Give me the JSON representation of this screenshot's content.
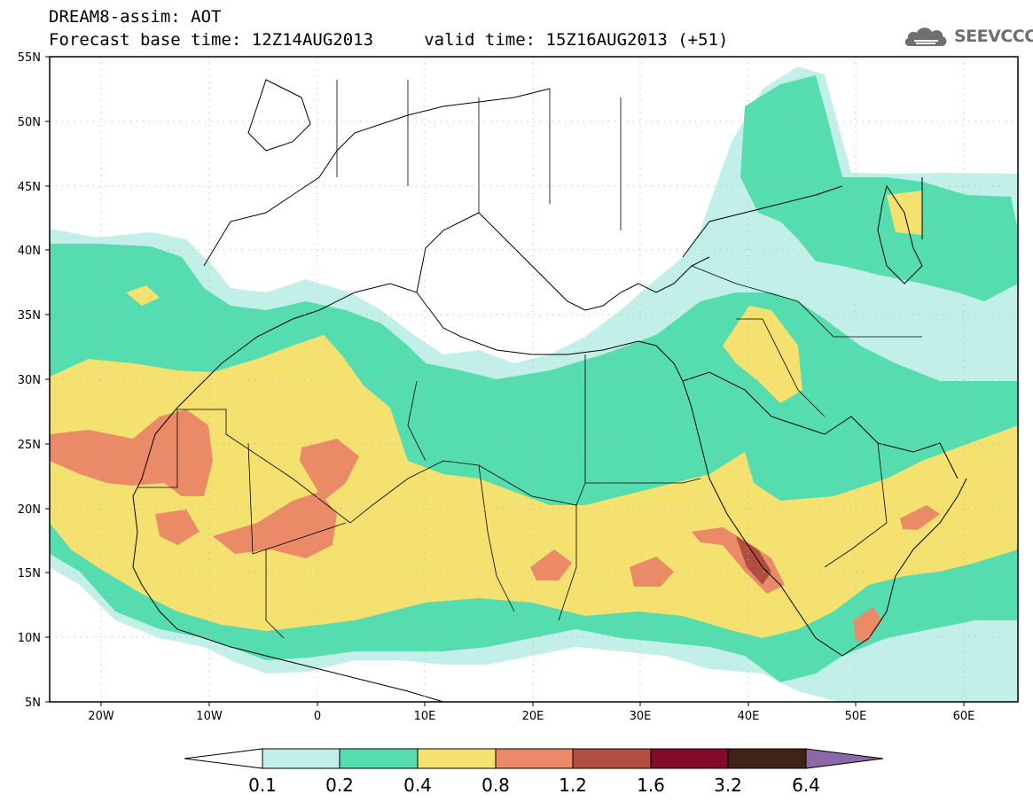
{
  "title": {
    "line1": "DREAM8-assim: AOT",
    "line2": "Forecast base time: 12Z14AUG2013     valid time: 15Z16AUG2013 (+51)"
  },
  "logo": {
    "text": "SEEVCCC",
    "icon": "cloud-icon",
    "color": "#6f6f6f"
  },
  "map": {
    "lat_ticks": [
      "5N",
      "10N",
      "15N",
      "20N",
      "25N",
      "30N",
      "35N",
      "40N",
      "45N",
      "50N",
      "55N"
    ],
    "lon_ticks": [
      "20W",
      "10W",
      "0",
      "10E",
      "20E",
      "30E",
      "40E",
      "50E",
      "60E"
    ],
    "lon_range": [
      -25,
      65
    ],
    "lat_range": [
      5,
      55
    ],
    "grid": true
  },
  "colorbar": {
    "labels": [
      "0.1",
      "0.2",
      "0.4",
      "0.8",
      "1.2",
      "1.6",
      "3.2",
      "6.4"
    ],
    "colors": [
      "#c2f0e9",
      "#55ddb0",
      "#f4e16f",
      "#ea8a66",
      "#b04f40",
      "#820a2a",
      "#3e2416",
      "#8c68a8"
    ],
    "under_color": "#ffffff"
  }
}
